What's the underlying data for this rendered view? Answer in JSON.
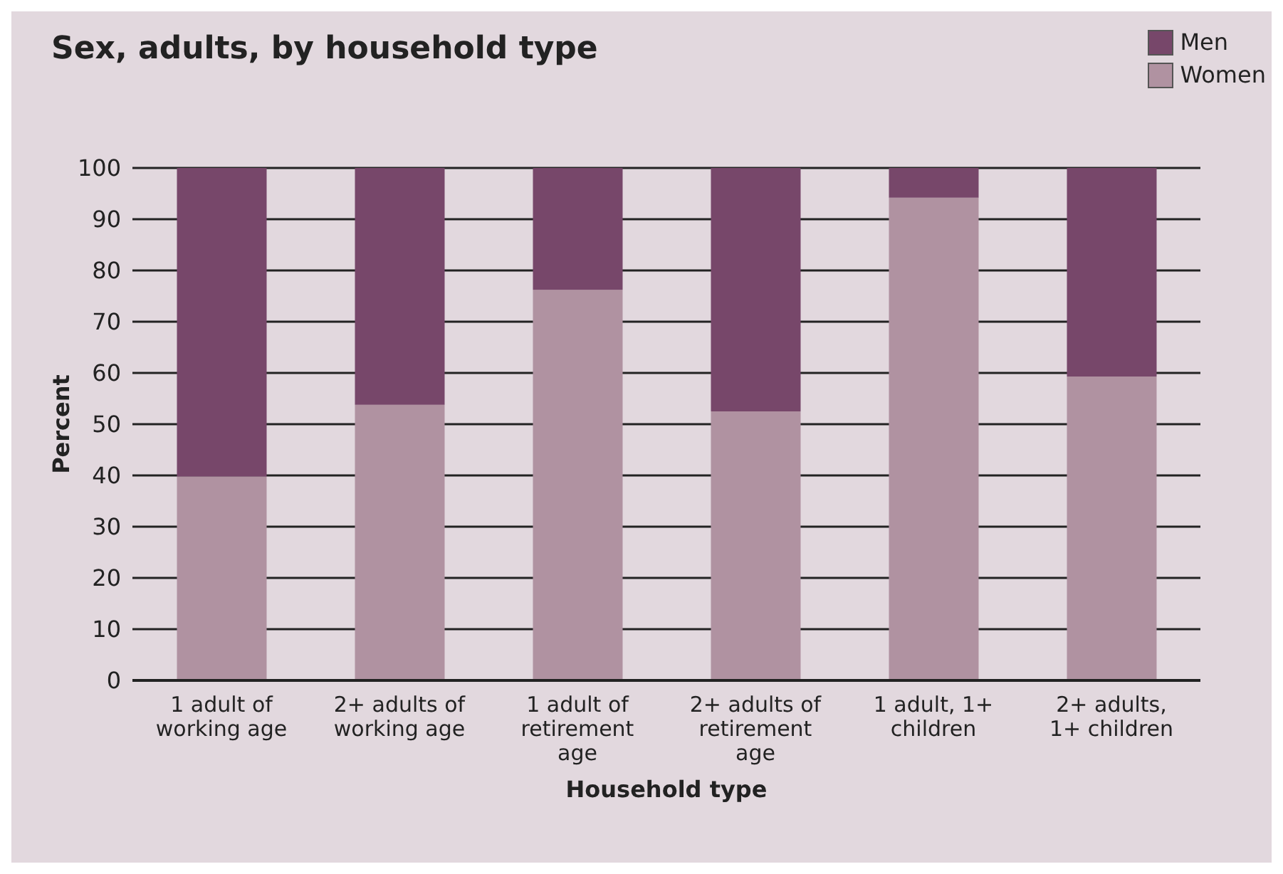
{
  "chart_data": {
    "type": "bar",
    "title": "Sex, adults, by household type",
    "xlabel": "Household type",
    "ylabel": "Percent",
    "categories": [
      "1 adult of working age",
      "2+ adults of working age",
      "1 adult of retirement age",
      "2+ adults of retirement age",
      "1 adult, 1+ children",
      "2+ adults, 1+ children"
    ],
    "series": [
      {
        "name": "Women",
        "color": "#b092a1",
        "values": [
          39.8,
          53.8,
          76.2,
          52.5,
          94.2,
          59.3
        ]
      },
      {
        "name": "Men",
        "color": "#77476a",
        "values": [
          60.2,
          46.2,
          23.8,
          47.5,
          5.8,
          40.7
        ]
      }
    ],
    "stacked": true,
    "ylim": [
      0,
      100
    ],
    "yticks": [
      0,
      10,
      20,
      30,
      40,
      50,
      60,
      70,
      80,
      90,
      100
    ],
    "grid": "y",
    "legend": "top right"
  }
}
